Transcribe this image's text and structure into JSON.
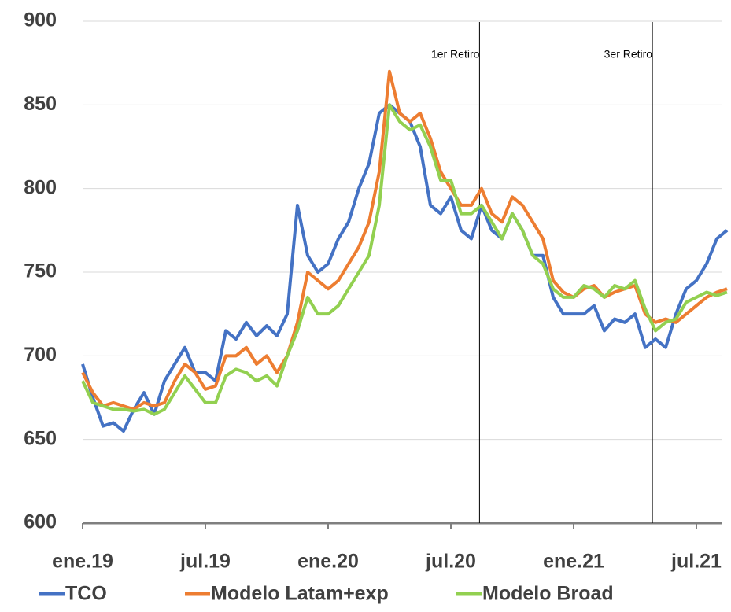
{
  "chart_data": {
    "type": "line",
    "categories": [
      "ene.19",
      null,
      null,
      null,
      null,
      null,
      null,
      null,
      null,
      null,
      null,
      null,
      "jul.19",
      null,
      null,
      null,
      null,
      null,
      null,
      null,
      null,
      null,
      null,
      null,
      "ene.20",
      null,
      null,
      null,
      null,
      null,
      null,
      null,
      null,
      null,
      null,
      null,
      "jul.20",
      null,
      null,
      null,
      null,
      null,
      null,
      null,
      null,
      null,
      null,
      null,
      "ene.21",
      null,
      null,
      null,
      null,
      null,
      null,
      null,
      null,
      null,
      null,
      null,
      "jul.21",
      null,
      null,
      null
    ],
    "series": [
      {
        "name": "TCO",
        "color": "#4472c4",
        "values": [
          695,
          675,
          658,
          660,
          655,
          668,
          678,
          665,
          685,
          695,
          705,
          690,
          690,
          685,
          715,
          710,
          720,
          712,
          718,
          712,
          725,
          790,
          760,
          750,
          755,
          770,
          780,
          800,
          815,
          845,
          850,
          845,
          840,
          825,
          790,
          785,
          795,
          775,
          770,
          790,
          775,
          770,
          785,
          775,
          760,
          760,
          735,
          725,
          725,
          725,
          730,
          715,
          722,
          720,
          725,
          705,
          710,
          705,
          725,
          740,
          745,
          755,
          770,
          775
        ]
      },
      {
        "name": "Modelo Latam+exp",
        "color": "#ed7d31",
        "values": [
          690,
          678,
          670,
          672,
          670,
          668,
          672,
          670,
          672,
          685,
          695,
          690,
          680,
          682,
          700,
          700,
          705,
          695,
          700,
          690,
          700,
          720,
          750,
          745,
          740,
          745,
          755,
          765,
          780,
          810,
          870,
          845,
          840,
          845,
          830,
          810,
          800,
          790,
          790,
          800,
          785,
          780,
          795,
          790,
          780,
          770,
          745,
          738,
          735,
          740,
          742,
          735,
          738,
          740,
          742,
          725,
          720,
          722,
          720,
          725,
          730,
          735,
          738,
          740
        ]
      },
      {
        "name": "Modelo Broad",
        "color": "#92d050",
        "values": [
          685,
          672,
          670,
          668,
          668,
          667,
          668,
          665,
          668,
          678,
          688,
          680,
          672,
          672,
          688,
          692,
          690,
          685,
          688,
          682,
          700,
          715,
          735,
          725,
          725,
          730,
          740,
          750,
          760,
          790,
          850,
          840,
          835,
          838,
          825,
          805,
          805,
          785,
          785,
          790,
          780,
          770,
          785,
          775,
          760,
          755,
          740,
          735,
          735,
          742,
          740,
          735,
          742,
          740,
          745,
          728,
          715,
          720,
          722,
          732,
          735,
          738,
          736,
          738
        ]
      }
    ],
    "annotations": [
      {
        "text": "1er Retiro",
        "x": 38.8
      },
      {
        "text": "3er Retiro",
        "x": 55.7
      }
    ],
    "ylim": [
      600,
      900
    ],
    "yticks": [
      600,
      650,
      700,
      750,
      800,
      850,
      900
    ],
    "grid": true,
    "legend": "bottom"
  }
}
